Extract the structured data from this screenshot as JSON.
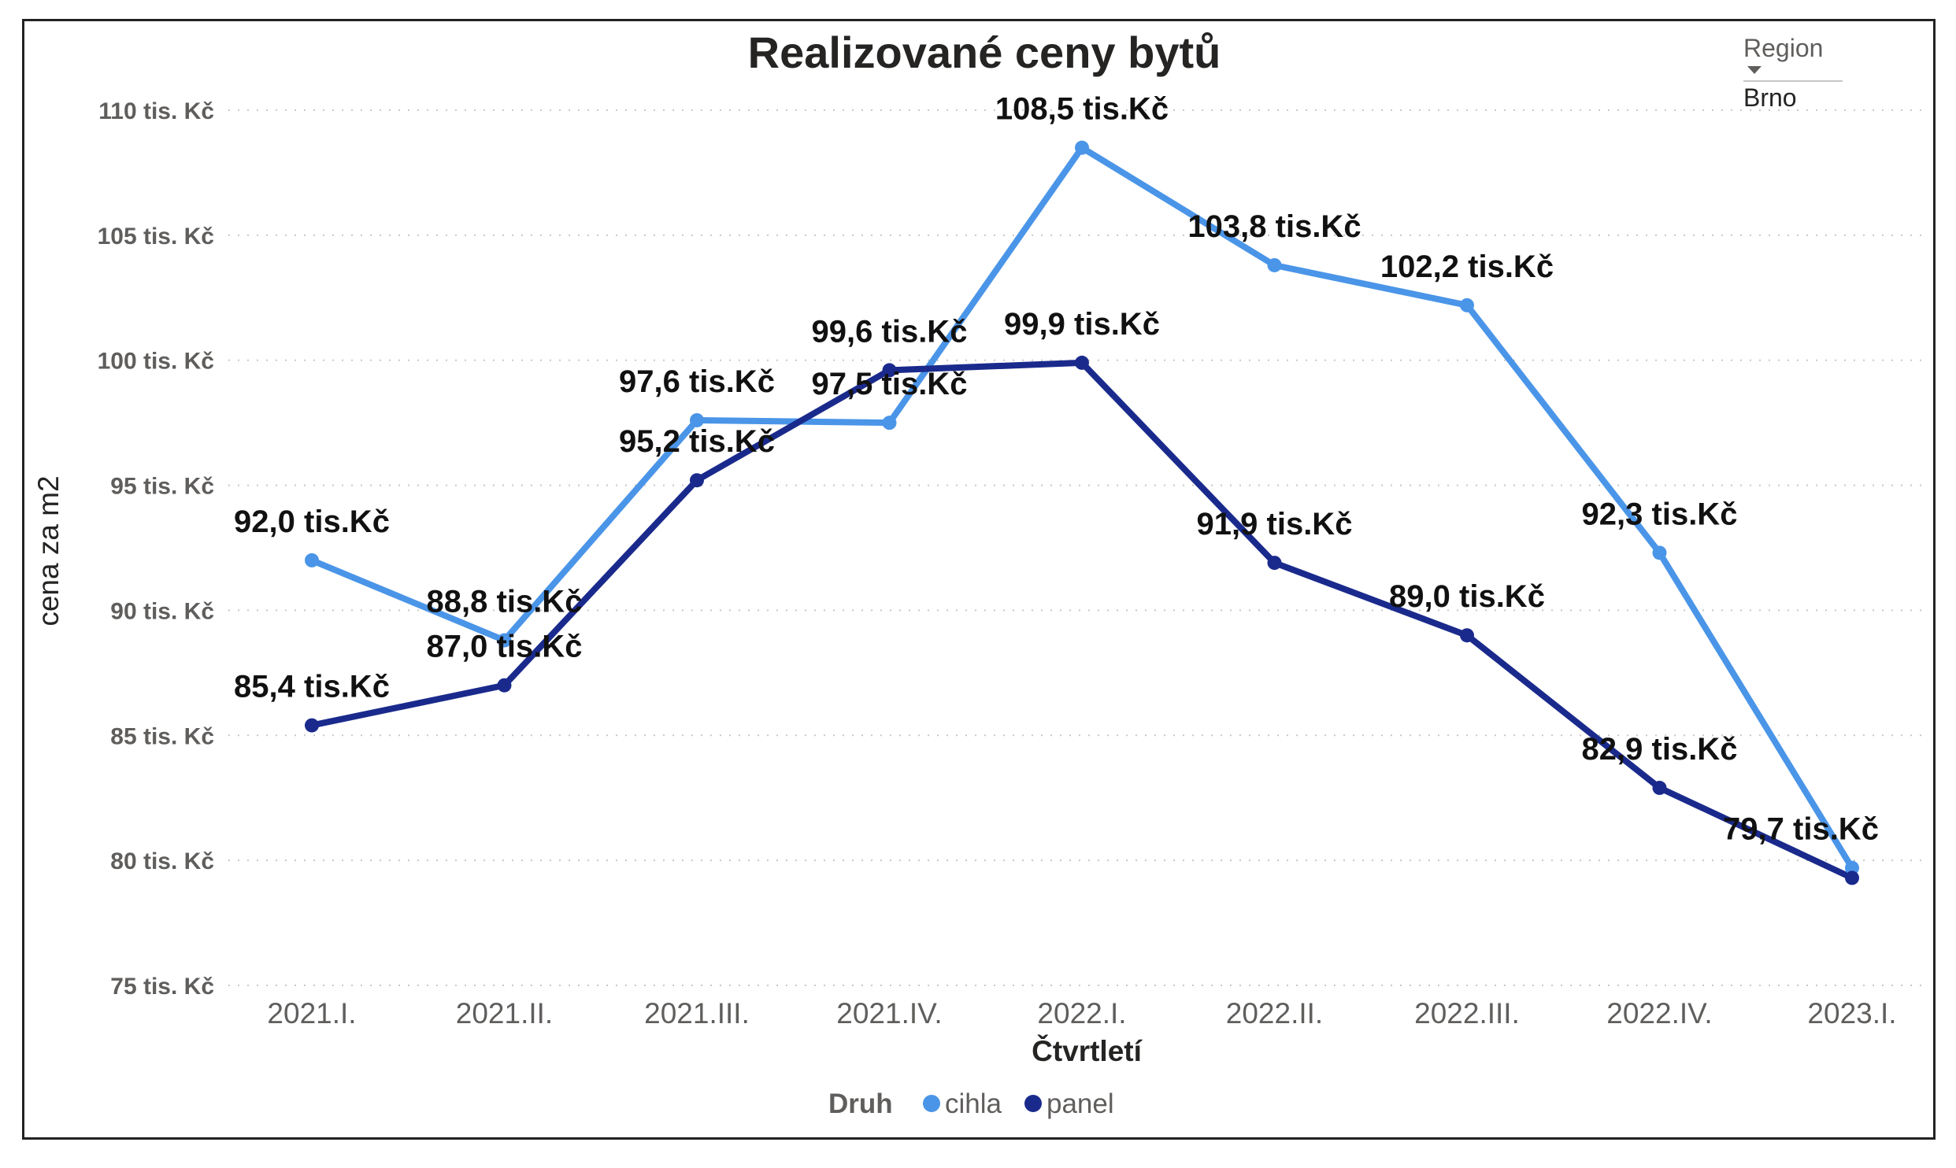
{
  "chart_data": {
    "type": "line",
    "title": "Realizované ceny bytů",
    "xlabel": "Čtvrtletí",
    "ylabel": "cena za m2",
    "categories": [
      "2021.I.",
      "2021.II.",
      "2021.III.",
      "2021.IV.",
      "2022.I.",
      "2022.II.",
      "2022.III.",
      "2022.IV.",
      "2023.I."
    ],
    "yticks": [
      {
        "value": 75,
        "label": "75 tis. Kč"
      },
      {
        "value": 80,
        "label": "80 tis. Kč"
      },
      {
        "value": 85,
        "label": "85 tis. Kč"
      },
      {
        "value": 90,
        "label": "90 tis. Kč"
      },
      {
        "value": 95,
        "label": "95 tis. Kč"
      },
      {
        "value": 100,
        "label": "100 tis. Kč"
      },
      {
        "value": 105,
        "label": "105 tis. Kč"
      },
      {
        "value": 110,
        "label": "110 tis. Kč"
      }
    ],
    "ylim": [
      75,
      110
    ],
    "grid": true,
    "legend": {
      "title": "Druh",
      "position": "bottom-center"
    },
    "series": [
      {
        "name": "cihla",
        "color": "#4a95e8",
        "values": [
          92.0,
          88.8,
          97.6,
          97.5,
          108.5,
          103.8,
          102.2,
          92.3,
          79.7
        ],
        "labels": [
          "92,0 tis.Kč",
          "88,8 tis.Kč",
          "97,6 tis.Kč",
          "97,5 tis.Kč",
          "108,5 tis.Kč",
          "103,8 tis.Kč",
          "102,2 tis.Kč",
          "92,3 tis.Kč",
          "79,7 tis.Kč"
        ],
        "label_shown": [
          true,
          true,
          true,
          true,
          true,
          true,
          true,
          true,
          true
        ]
      },
      {
        "name": "panel",
        "color": "#1a2a8c",
        "values": [
          85.4,
          87.0,
          95.2,
          99.6,
          99.9,
          91.9,
          89.0,
          82.9,
          79.3
        ],
        "labels": [
          "85,4 tis.Kč",
          "87,0 tis.Kč",
          "95,2 tis.Kč",
          "99,6 tis.Kč",
          "99,9 tis.Kč",
          "91,9 tis.Kč",
          "89,0 tis.Kč",
          "82,9 tis.Kč",
          ""
        ],
        "label_shown": [
          true,
          true,
          true,
          true,
          true,
          true,
          true,
          true,
          false
        ]
      }
    ]
  },
  "slicer": {
    "header": "Region",
    "selected": "Brno"
  }
}
